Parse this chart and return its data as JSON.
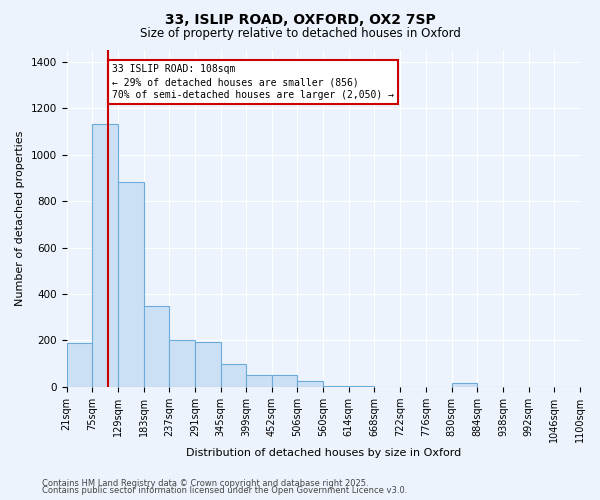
{
  "title1": "33, ISLIP ROAD, OXFORD, OX2 7SP",
  "title2": "Size of property relative to detached houses in Oxford",
  "xlabel": "Distribution of detached houses by size in Oxford",
  "ylabel": "Number of detached properties",
  "bar_color": "#cce0f5",
  "bar_edge_color": "#6aabdc",
  "bin_edges": [
    21,
    75,
    129,
    183,
    237,
    291,
    345,
    399,
    452,
    506,
    560,
    614,
    668,
    722,
    776,
    830,
    884,
    938,
    992,
    1046,
    1100
  ],
  "bar_heights": [
    190,
    1130,
    880,
    350,
    200,
    195,
    100,
    50,
    50,
    25,
    5,
    5,
    0,
    0,
    0,
    15,
    0,
    0,
    0,
    0
  ],
  "property_size": 108,
  "red_line_color": "#cc0000",
  "annotation_text": "33 ISLIP ROAD: 108sqm\n← 29% of detached houses are smaller (856)\n70% of semi-detached houses are larger (2,050) →",
  "annotation_box_color": "#ffffff",
  "annotation_box_edge_color": "#cc0000",
  "ylim": [
    0,
    1450
  ],
  "yticks": [
    0,
    200,
    400,
    600,
    800,
    1000,
    1200,
    1400
  ],
  "footnote1": "Contains HM Land Registry data © Crown copyright and database right 2025.",
  "footnote2": "Contains public sector information licensed under the Open Government Licence v3.0.",
  "background_color": "#edf3fc",
  "grid_color": "#ffffff",
  "title_fontsize": 10,
  "subtitle_fontsize": 8.5,
  "tick_label_fontsize": 7,
  "ylabel_fontsize": 8,
  "xlabel_fontsize": 8,
  "footnote_fontsize": 6
}
